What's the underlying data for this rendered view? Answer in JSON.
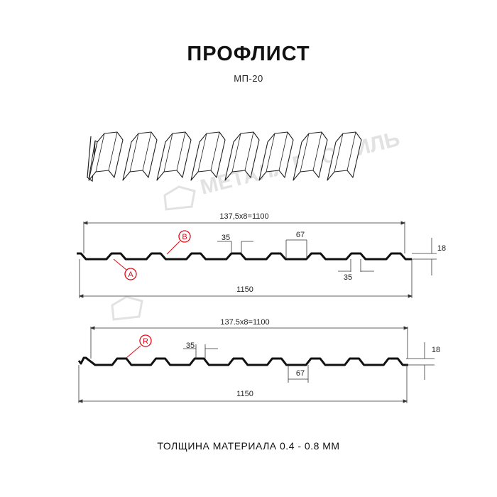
{
  "header": {
    "title": "ПРОФЛИСТ",
    "model": "МП-20"
  },
  "watermark": "МЕТАЛЛ ПРОФИЛЬ",
  "profile_a": {
    "span_label": "137,5x8=1100",
    "total_label": "1150",
    "rib_top_label": "35",
    "rib_gap_label": "67",
    "rib_bottom_label": "35",
    "height_label": "18",
    "marker_a": "A",
    "marker_b": "B"
  },
  "profile_b": {
    "span_label": "137.5x8=1100",
    "total_label": "1150",
    "rib_top_label": "35",
    "rib_gap_label": "67",
    "height_label": "18",
    "marker_r": "R"
  },
  "footer": {
    "thickness": "ТОЛЩИНА МАТЕРИАЛА 0.4 - 0.8 ММ"
  },
  "colors": {
    "line": "#111111",
    "marker": "#e30613",
    "watermark": "#e2e2e2"
  }
}
